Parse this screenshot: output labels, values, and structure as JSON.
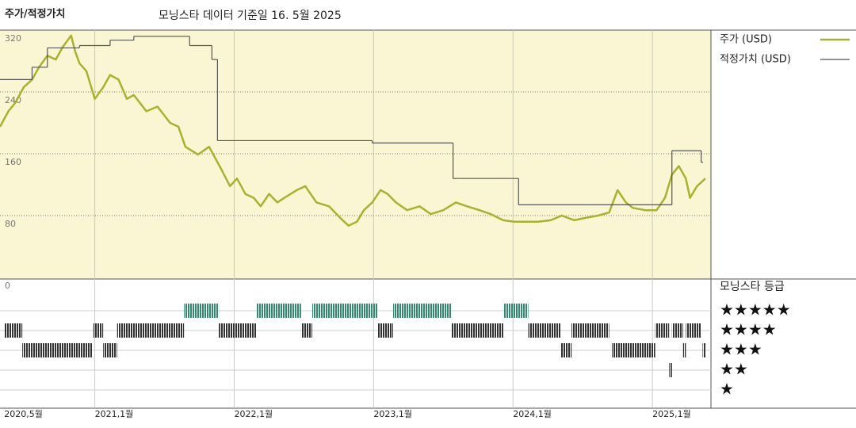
{
  "chart_data": {
    "type": "line",
    "title": "주가/적정가치",
    "subtitle": "모닝스타 데이터 기준일 16. 5월 2025",
    "xlim": [
      2020.32,
      2025.42
    ],
    "xticks": [
      {
        "value": 2020.35,
        "label": "2020,5월"
      },
      {
        "value": 2021,
        "label": "2021,1월"
      },
      {
        "value": 2022,
        "label": "2022,1월"
      },
      {
        "value": 2023,
        "label": "2023,1월"
      },
      {
        "value": 2024,
        "label": "2024,1월"
      },
      {
        "value": 2025,
        "label": "2025,1월"
      }
    ],
    "ylim": [
      0,
      320
    ],
    "yticks": [
      0,
      80,
      160,
      240,
      320
    ],
    "grid": true,
    "series": [
      {
        "name": "주가 (USD)",
        "color": "#a8b22a",
        "x": [
          2020.32,
          2020.38,
          2020.43,
          2020.49,
          2020.55,
          2020.6,
          2020.66,
          2020.72,
          2020.77,
          2020.83,
          2020.86,
          2020.89,
          2020.94,
          2021.0,
          2021.06,
          2021.11,
          2021.17,
          2021.23,
          2021.28,
          2021.37,
          2021.45,
          2021.54,
          2021.6,
          2021.65,
          2021.74,
          2021.82,
          2021.91,
          2021.97,
          2022.02,
          2022.08,
          2022.14,
          2022.19,
          2022.25,
          2022.31,
          2022.36,
          2022.45,
          2022.51,
          2022.59,
          2022.68,
          2022.76,
          2022.82,
          2022.88,
          2022.93,
          2022.99,
          2023.05,
          2023.1,
          2023.16,
          2023.24,
          2023.33,
          2023.41,
          2023.5,
          2023.59,
          2023.67,
          2023.76,
          2023.84,
          2023.93,
          2024.01,
          2024.1,
          2024.18,
          2024.27,
          2024.35,
          2024.44,
          2024.52,
          2024.61,
          2024.69,
          2024.75,
          2024.81,
          2024.86,
          2024.95,
          2025.03,
          2025.09,
          2025.14,
          2025.19,
          2025.24,
          2025.27,
          2025.32,
          2025.38
        ],
        "values": [
          195,
          215,
          226,
          246,
          256,
          272,
          287,
          282,
          298,
          313,
          292,
          277,
          267,
          231,
          246,
          262,
          256,
          231,
          236,
          215,
          221,
          200,
          195,
          169,
          159,
          169,
          139,
          118,
          128,
          108,
          103,
          92,
          108,
          97,
          103,
          113,
          118,
          97,
          92,
          77,
          67,
          72,
          87,
          97,
          113,
          108,
          97,
          87,
          92,
          82,
          87,
          97,
          92,
          87,
          82,
          74,
          72,
          72,
          72,
          74,
          80,
          74,
          77,
          80,
          84,
          113,
          97,
          90,
          87,
          87,
          103,
          133,
          144,
          128,
          103,
          118,
          128
        ]
      },
      {
        "name": "적정가치 (USD)",
        "color": "#555555",
        "step": true,
        "x": [
          2020.32,
          2020.55,
          2020.66,
          2020.89,
          2021.11,
          2021.28,
          2021.68,
          2021.84,
          2021.88,
          2022.99,
          2023.57,
          2024.04,
          2025.14,
          2025.35
        ],
        "values": [
          256,
          272,
          297,
          300,
          307,
          312,
          300,
          282,
          177,
          174,
          128,
          94,
          164,
          149
        ]
      }
    ],
    "rating_title": "모닝스타 등급",
    "rating_levels": [
      {
        "value": 5,
        "label": "★★★★★"
      },
      {
        "value": 4,
        "label": "★★★★"
      },
      {
        "value": 3,
        "label": "★★★"
      },
      {
        "value": 2,
        "label": "★★"
      },
      {
        "value": 1,
        "label": "★"
      }
    ],
    "ratings": [
      {
        "start": 2020.35,
        "end": 2020.48,
        "stars": 4
      },
      {
        "start": 2020.48,
        "end": 2020.98,
        "stars": 3
      },
      {
        "start": 2020.99,
        "end": 2021.06,
        "stars": 4
      },
      {
        "start": 2021.06,
        "end": 2021.16,
        "stars": 3
      },
      {
        "start": 2021.16,
        "end": 2021.64,
        "stars": 4
      },
      {
        "start": 2021.64,
        "end": 2021.89,
        "stars": 5
      },
      {
        "start": 2021.89,
        "end": 2022.16,
        "stars": 4
      },
      {
        "start": 2022.16,
        "end": 2022.48,
        "stars": 5
      },
      {
        "start": 2022.48,
        "end": 2022.56,
        "stars": 4
      },
      {
        "start": 2022.56,
        "end": 2023.03,
        "stars": 5
      },
      {
        "start": 2023.03,
        "end": 2023.14,
        "stars": 4
      },
      {
        "start": 2023.14,
        "end": 2023.56,
        "stars": 5
      },
      {
        "start": 2023.56,
        "end": 2023.93,
        "stars": 4
      },
      {
        "start": 2023.93,
        "end": 2024.11,
        "stars": 5
      },
      {
        "start": 2024.11,
        "end": 2024.34,
        "stars": 4
      },
      {
        "start": 2024.34,
        "end": 2024.42,
        "stars": 3
      },
      {
        "start": 2024.42,
        "end": 2024.69,
        "stars": 4
      },
      {
        "start": 2024.71,
        "end": 2025.02,
        "stars": 3
      },
      {
        "start": 2025.02,
        "end": 2025.12,
        "stars": 4
      },
      {
        "start": 2025.12,
        "end": 2025.14,
        "stars": 2
      },
      {
        "start": 2025.14,
        "end": 2025.22,
        "stars": 4
      },
      {
        "start": 2025.22,
        "end": 2025.24,
        "stars": 3
      },
      {
        "start": 2025.24,
        "end": 2025.35,
        "stars": 4
      },
      {
        "start": 2025.36,
        "end": 2025.38,
        "stars": 3
      }
    ],
    "rating_colors": {
      "top": "#2e8b6e",
      "other": "#333333"
    }
  }
}
